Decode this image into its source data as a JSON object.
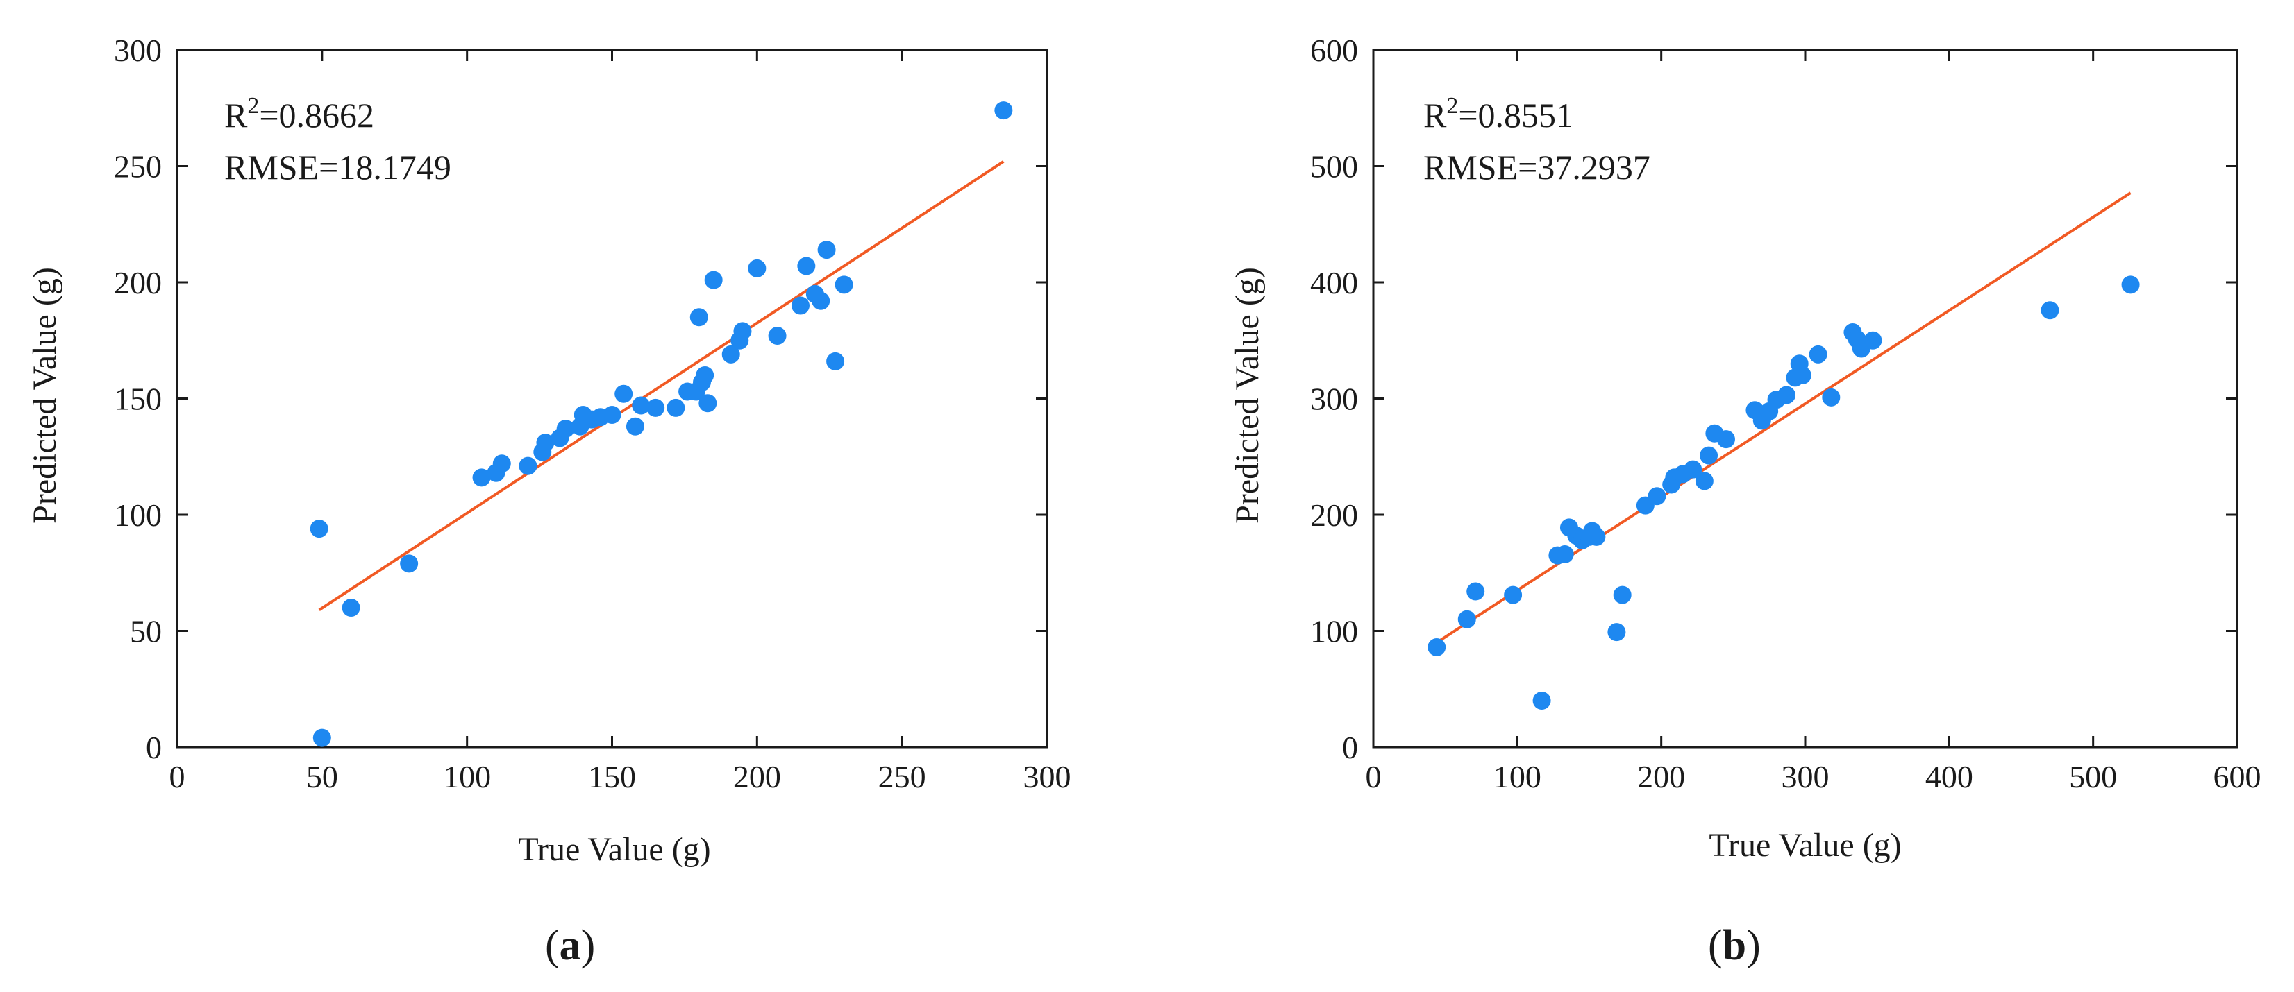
{
  "colors": {
    "point": "#1e88f0",
    "fit_line": "#f15a24",
    "axis": "#1a1a1a"
  },
  "chart_data": [
    {
      "type": "scatter",
      "panel_label": "(a)",
      "panel_letter": "a",
      "xlabel": "True Value (g)",
      "ylabel": "Predicted Value (g)",
      "xlim": [
        0,
        300
      ],
      "ylim": [
        0,
        300
      ],
      "xticks": [
        0,
        50,
        100,
        150,
        200,
        250,
        300
      ],
      "yticks": [
        0,
        50,
        100,
        150,
        200,
        250,
        300
      ],
      "annotations": {
        "r2_prefix": "R",
        "r2_exp": "2",
        "r2_value": "=0.8662",
        "rmse": "RMSE=18.1749"
      },
      "fit_line": {
        "x": [
          49,
          285
        ],
        "y": [
          59,
          252
        ]
      },
      "points": [
        [
          49,
          94
        ],
        [
          50,
          4
        ],
        [
          60,
          60
        ],
        [
          80,
          79
        ],
        [
          105,
          116
        ],
        [
          110,
          118
        ],
        [
          112,
          122
        ],
        [
          121,
          121
        ],
        [
          126,
          127
        ],
        [
          127,
          131
        ],
        [
          132,
          133
        ],
        [
          134,
          137
        ],
        [
          139,
          138
        ],
        [
          140,
          143
        ],
        [
          143,
          141
        ],
        [
          146,
          142
        ],
        [
          150,
          143
        ],
        [
          154,
          152
        ],
        [
          158,
          138
        ],
        [
          160,
          147
        ],
        [
          165,
          146
        ],
        [
          172,
          146
        ],
        [
          176,
          153
        ],
        [
          179,
          153
        ],
        [
          180,
          185
        ],
        [
          181,
          157
        ],
        [
          182,
          160
        ],
        [
          183,
          148
        ],
        [
          185,
          201
        ],
        [
          191,
          169
        ],
        [
          194,
          175
        ],
        [
          195,
          179
        ],
        [
          200,
          206
        ],
        [
          207,
          177
        ],
        [
          215,
          190
        ],
        [
          217,
          207
        ],
        [
          220,
          195
        ],
        [
          222,
          192
        ],
        [
          224,
          214
        ],
        [
          227,
          166
        ],
        [
          230,
          199
        ],
        [
          285,
          274
        ]
      ]
    },
    {
      "type": "scatter",
      "panel_label": "(b)",
      "panel_letter": "b",
      "xlabel": "True Value (g)",
      "ylabel": "Predicted Value (g)",
      "xlim": [
        0,
        600
      ],
      "ylim": [
        0,
        600
      ],
      "xticks": [
        0,
        100,
        200,
        300,
        400,
        500,
        600
      ],
      "yticks": [
        0,
        100,
        200,
        300,
        400,
        500,
        600
      ],
      "annotations": {
        "r2_prefix": "R",
        "r2_exp": "2",
        "r2_value": "=0.8551",
        "rmse": "RMSE=37.2937"
      },
      "fit_line": {
        "x": [
          44,
          526
        ],
        "y": [
          90,
          477
        ]
      },
      "points": [
        [
          44,
          86
        ],
        [
          65,
          110
        ],
        [
          71,
          134
        ],
        [
          97,
          131
        ],
        [
          117,
          40
        ],
        [
          128,
          165
        ],
        [
          133,
          166
        ],
        [
          136,
          189
        ],
        [
          141,
          182
        ],
        [
          145,
          178
        ],
        [
          150,
          181
        ],
        [
          152,
          186
        ],
        [
          155,
          181
        ],
        [
          169,
          99
        ],
        [
          173,
          131
        ],
        [
          189,
          208
        ],
        [
          197,
          216
        ],
        [
          207,
          226
        ],
        [
          209,
          232
        ],
        [
          215,
          235
        ],
        [
          222,
          239
        ],
        [
          230,
          229
        ],
        [
          233,
          251
        ],
        [
          237,
          270
        ],
        [
          245,
          265
        ],
        [
          265,
          290
        ],
        [
          270,
          281
        ],
        [
          275,
          289
        ],
        [
          280,
          299
        ],
        [
          287,
          303
        ],
        [
          293,
          318
        ],
        [
          296,
          330
        ],
        [
          298,
          320
        ],
        [
          309,
          338
        ],
        [
          318,
          301
        ],
        [
          333,
          357
        ],
        [
          336,
          351
        ],
        [
          339,
          343
        ],
        [
          347,
          350
        ],
        [
          470,
          376
        ],
        [
          526,
          398
        ]
      ]
    }
  ]
}
